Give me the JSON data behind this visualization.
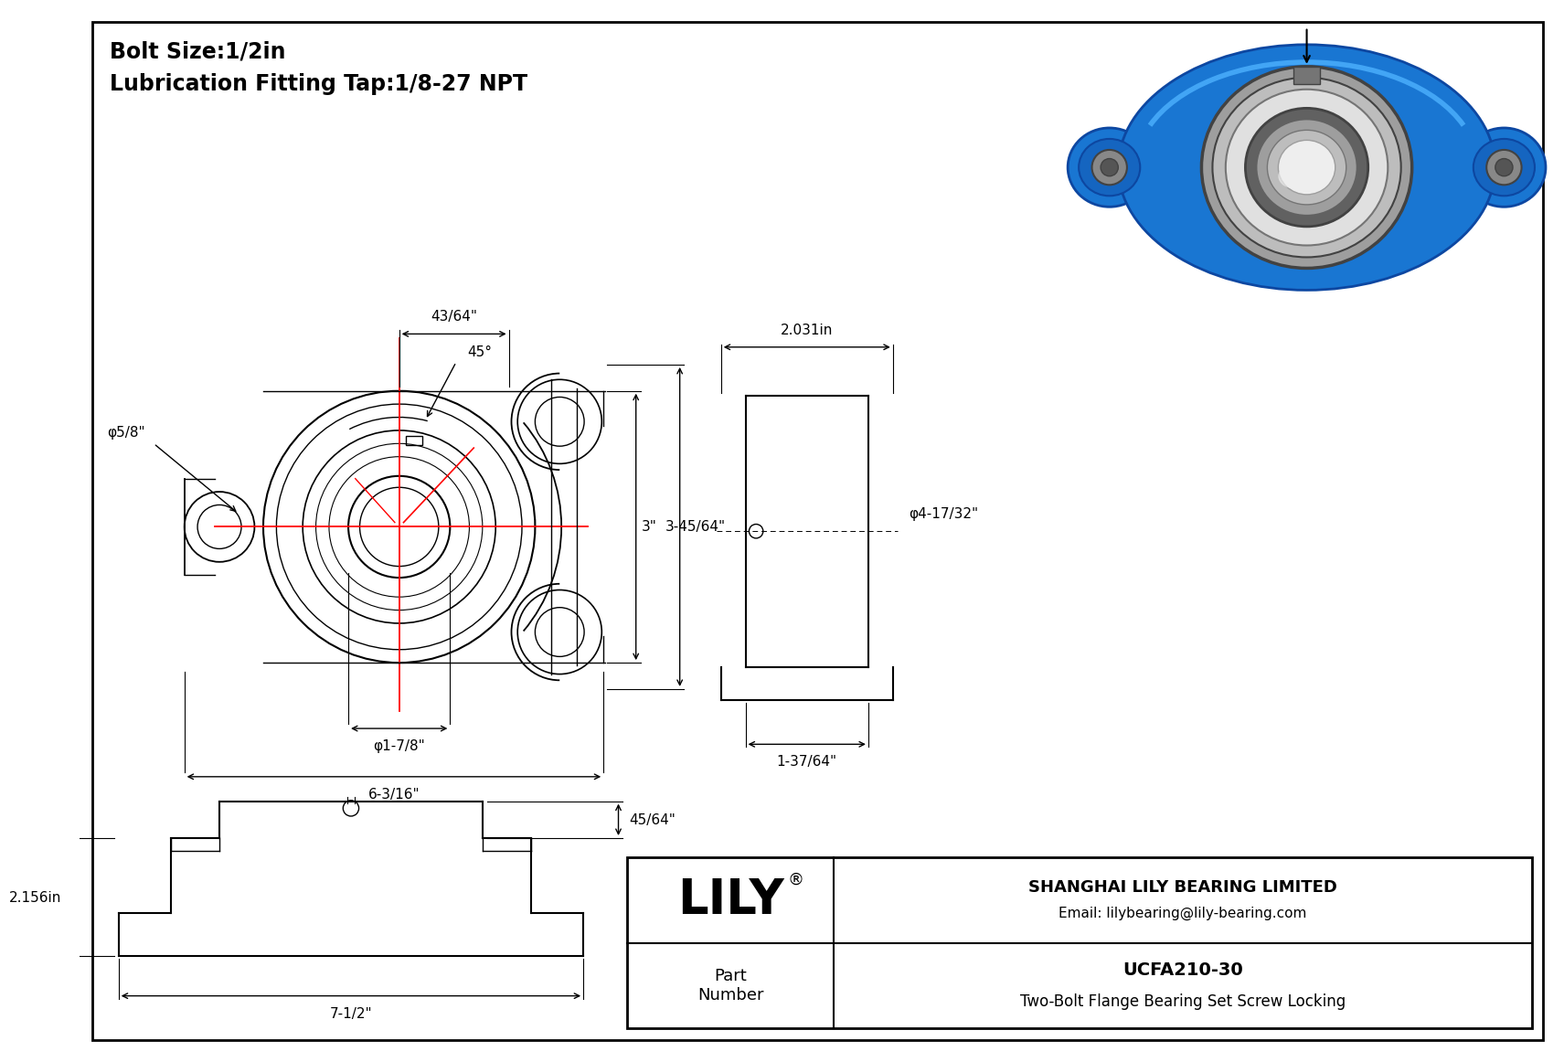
{
  "bg_color": "#ffffff",
  "border_color": "#000000",
  "line_color": "#000000",
  "red_color": "#ff0000",
  "title_line1": "Bolt Size:1/2in",
  "title_line2": "Lubrication Fitting Tap:1/8-27 NPT",
  "company": "SHANGHAI LILY BEARING LIMITED",
  "email": "Email: lilybearing@lily-bearing.com",
  "part_number_label": "Part\nNumber",
  "part_number": "UCFA210-30",
  "part_desc": "Two-Bolt Flange Bearing Set Screw Locking",
  "lily_logo": "LILY",
  "dims": {
    "bolt_hole_dia": "φ5/8\"",
    "shaft_dia": "φ1-7/8\"",
    "overall_width": "6-3/16\"",
    "top_dim": "43/64\"",
    "height_dim": "3\"",
    "side_dim": "3-45/64\"",
    "angle": "45°",
    "side_width": "2.031in",
    "side_bore": "φ4-17/32\"",
    "side_base": "1-37/64\"",
    "bottom_height": "2.156in",
    "bottom_width": "7-1/2\"",
    "bottom_top_dim": "45/64\""
  }
}
